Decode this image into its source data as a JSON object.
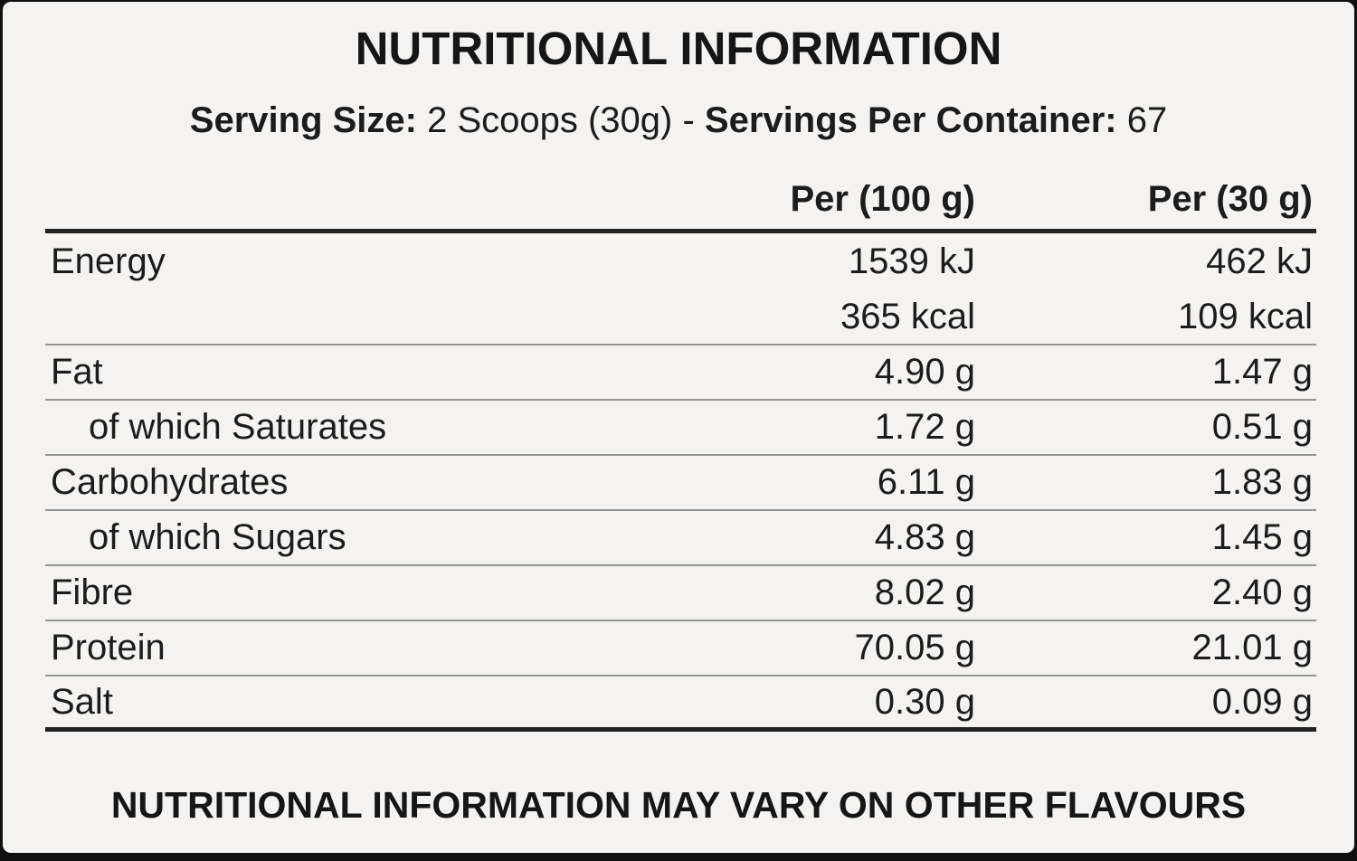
{
  "label": {
    "title": "NUTRITIONAL INFORMATION",
    "serving": {
      "size_label": "Serving Size: ",
      "size_value": "2 Scoops (30g) - ",
      "container_label": "Servings Per Container: ",
      "container_value": "67"
    },
    "table": {
      "columns": {
        "nutrient": "",
        "per100": "Per (100 g)",
        "per30": "Per (30 g)"
      },
      "rows": [
        {
          "label": "Energy",
          "per100": "1539 kJ",
          "per30": "462 kJ"
        },
        {
          "label": "",
          "per100": "365 kcal",
          "per30": "109 kcal"
        },
        {
          "label": "Fat",
          "per100": "4.90 g",
          "per30": "1.47 g"
        },
        {
          "label": "of which Saturates",
          "per100": "1.72 g",
          "per30": "0.51 g"
        },
        {
          "label": "Carbohydrates",
          "per100": "6.11 g",
          "per30": "1.83 g"
        },
        {
          "label": "of which Sugars",
          "per100": "4.83 g",
          "per30": "1.45 g"
        },
        {
          "label": "Fibre",
          "per100": "8.02 g",
          "per30": "2.40 g"
        },
        {
          "label": "Protein",
          "per100": "70.05 g",
          "per30": "21.01 g"
        },
        {
          "label": "Salt",
          "per100": "0.30 g",
          "per30": "0.09 g"
        }
      ]
    },
    "footer": "NUTRITIONAL INFORMATION MAY VARY ON OTHER FLAVOURS",
    "colors": {
      "background": "#f4f3f1",
      "text": "#1c1c1c",
      "thick_rule": "#222222",
      "thin_rule": "#949494",
      "edge": "#101010"
    }
  }
}
